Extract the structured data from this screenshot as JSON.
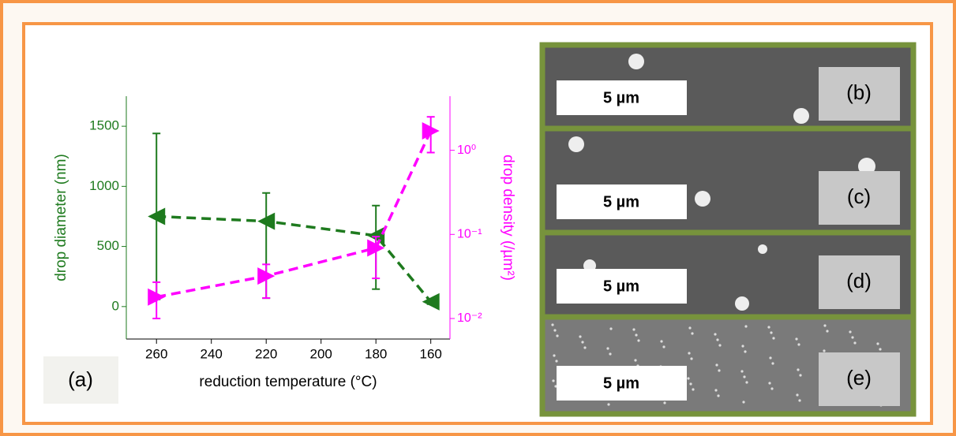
{
  "chart_data": {
    "type": "line",
    "label": "(a)",
    "xlabel": "reduction temperature (°C)",
    "ylabel": "drop diameter (nm)",
    "y2label": "drop density (/µm²)",
    "x": [
      260,
      220,
      180,
      160
    ],
    "xlim": [
      271,
      153
    ],
    "xticks": [
      260,
      240,
      220,
      200,
      180,
      160
    ],
    "ylim": [
      -270,
      1750
    ],
    "yticks": [
      0,
      500,
      1000,
      1500
    ],
    "y2lim": [
      0.0057,
      4.4
    ],
    "y2scale": "log",
    "y2ticks": [
      {
        "value": 0.01,
        "label": "10⁻²"
      },
      {
        "value": 0.1,
        "label": "10⁻¹"
      },
      {
        "value": 1,
        "label": "10⁰"
      }
    ],
    "series": [
      {
        "color": "#1e7a1e",
        "marker": "left",
        "values": [
          750,
          710,
          590,
          40
        ],
        "err_plus": [
          690,
          235,
          250,
          20
        ],
        "err_minus": [
          690,
          640,
          445,
          20
        ]
      },
      {
        "color": "#ff00ff",
        "marker": "right",
        "axis": "y2",
        "values": [
          0.018,
          0.032,
          0.069,
          1.7
        ],
        "err_plus": [
          0.009,
          0.012,
          0.025,
          0.8
        ],
        "err_minus": [
          0.008,
          0.0145,
          0.039,
          0.76
        ]
      }
    ]
  },
  "images": [
    {
      "label": "(b)",
      "scale": "5 µm"
    },
    {
      "label": "(c)",
      "scale": "5 µm"
    },
    {
      "label": "(d)",
      "scale": "5 µm"
    },
    {
      "label": "(e)",
      "scale": "5 µm"
    }
  ]
}
